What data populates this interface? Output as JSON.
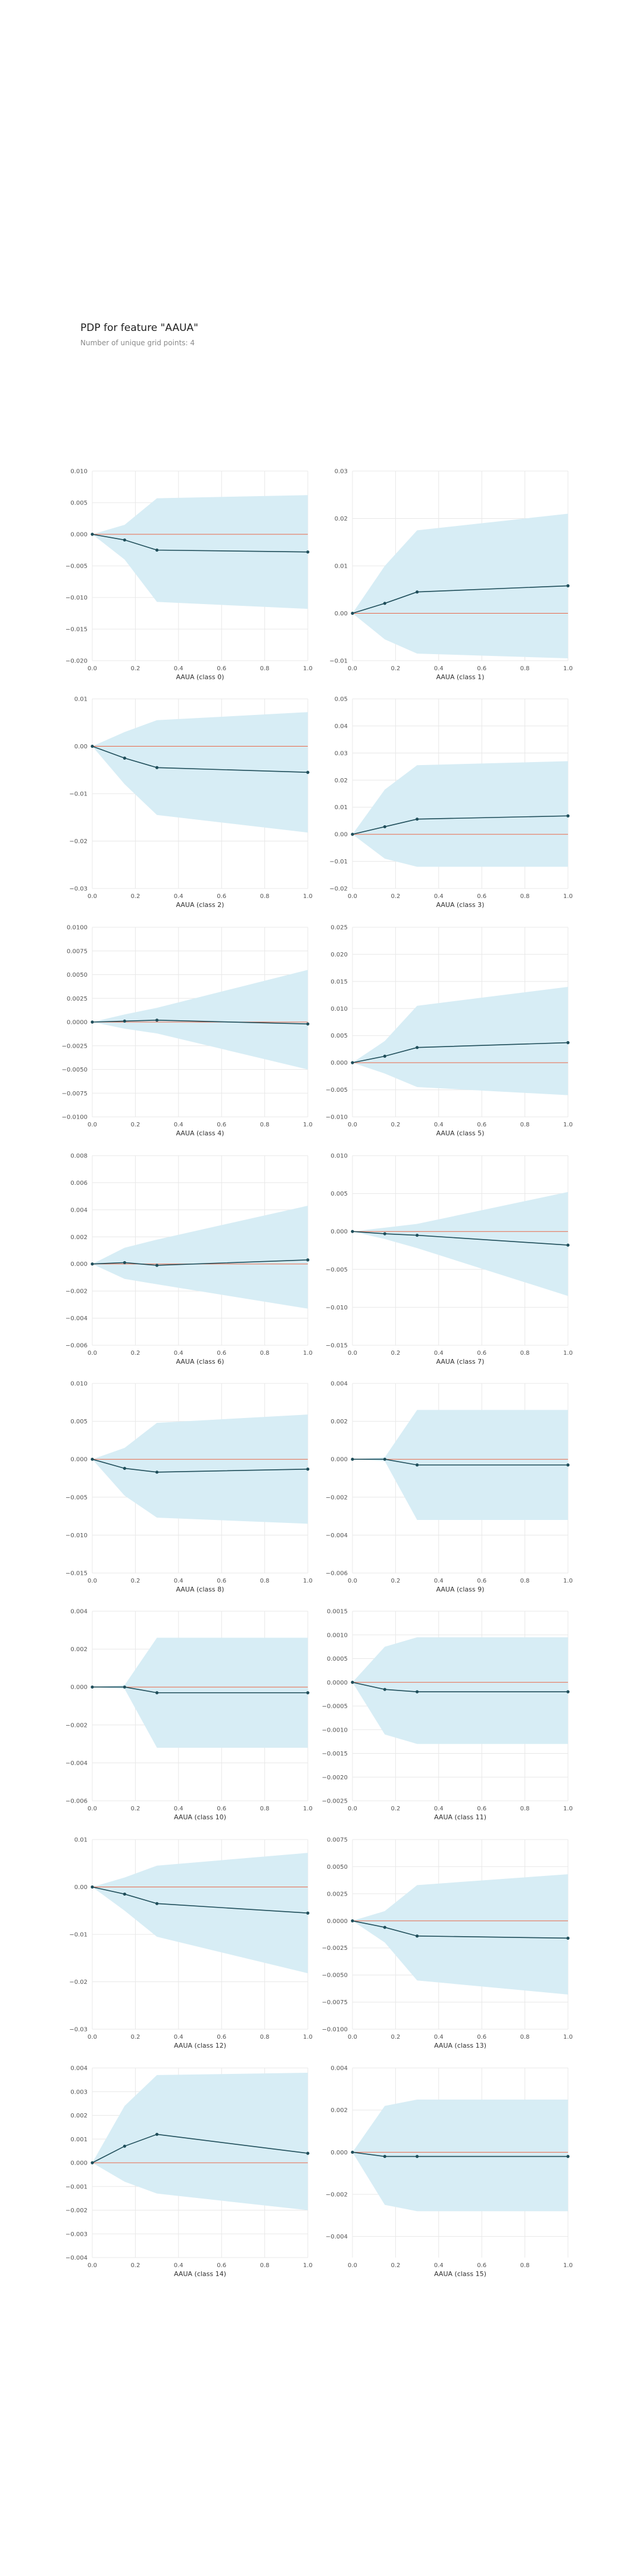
{
  "header": {
    "title": "PDP for feature \"AAUA\"",
    "subtitle": "Number of unique grid points: 4"
  },
  "colors": {
    "band": "#d7edf5",
    "line": "#1f4e5a",
    "zero_line": "#e8694a",
    "grid": "#e8e8e8",
    "tick_text": "#555555",
    "xlabel_text": "#333333"
  },
  "chart_data": [
    {
      "type": "line",
      "xlabel": "AAUA (class 0)",
      "x": [
        0,
        0.15,
        0.3,
        1.0
      ],
      "xlim": [
        0,
        1
      ],
      "ylim": [
        -0.02,
        0.01
      ],
      "yticks": [
        0.01,
        0.005,
        0.0,
        -0.005,
        -0.01,
        -0.015,
        -0.02
      ],
      "yticklabels": [
        "0.010",
        "0.005",
        "0.000",
        "−0.005",
        "−0.010",
        "−0.015",
        "−0.020"
      ],
      "xticks": [
        0,
        0.2,
        0.4,
        0.6,
        0.8,
        1.0
      ],
      "xticklabels": [
        "0.0",
        "0.2",
        "0.4",
        "0.6",
        "0.8",
        "1.0"
      ],
      "series": [
        {
          "values": [
            0.0,
            -0.0009,
            -0.0025,
            -0.0028
          ]
        }
      ],
      "band_upper": [
        0.0,
        0.0015,
        0.0057,
        0.0062
      ],
      "band_lower": [
        0.0,
        -0.004,
        -0.0107,
        -0.0118
      ]
    },
    {
      "type": "line",
      "xlabel": "AAUA (class 1)",
      "x": [
        0,
        0.15,
        0.3,
        1.0
      ],
      "xlim": [
        0,
        1
      ],
      "ylim": [
        -0.01,
        0.03
      ],
      "yticks": [
        0.03,
        0.02,
        0.01,
        0.0,
        -0.01
      ],
      "yticklabels": [
        "0.03",
        "0.02",
        "0.01",
        "0.00",
        "−0.01"
      ],
      "xticks": [
        0,
        0.2,
        0.4,
        0.6,
        0.8,
        1.0
      ],
      "xticklabels": [
        "0.0",
        "0.2",
        "0.4",
        "0.6",
        "0.8",
        "1.0"
      ],
      "series": [
        {
          "values": [
            0.0,
            0.0021,
            0.0045,
            0.0058
          ]
        }
      ],
      "band_upper": [
        0.0,
        0.01,
        0.0175,
        0.021
      ],
      "band_lower": [
        0.0,
        -0.0055,
        -0.0085,
        -0.0095
      ]
    },
    {
      "type": "line",
      "xlabel": "AAUA (class 2)",
      "x": [
        0,
        0.15,
        0.3,
        1.0
      ],
      "xlim": [
        0,
        1
      ],
      "ylim": [
        -0.03,
        0.01
      ],
      "yticks": [
        0.01,
        0.0,
        -0.01,
        -0.02,
        -0.03
      ],
      "yticklabels": [
        "0.01",
        "0.00",
        "−0.01",
        "−0.02",
        "−0.03"
      ],
      "xticks": [
        0,
        0.2,
        0.4,
        0.6,
        0.8,
        1.0
      ],
      "xticklabels": [
        "0.0",
        "0.2",
        "0.4",
        "0.6",
        "0.8",
        "1.0"
      ],
      "series": [
        {
          "values": [
            0.0,
            -0.0025,
            -0.0045,
            -0.0055
          ]
        }
      ],
      "band_upper": [
        0.0,
        0.003,
        0.0055,
        0.0072
      ],
      "band_lower": [
        0.0,
        -0.008,
        -0.0145,
        -0.0182
      ]
    },
    {
      "type": "line",
      "xlabel": "AAUA (class 3)",
      "x": [
        0,
        0.15,
        0.3,
        1.0
      ],
      "xlim": [
        0,
        1
      ],
      "ylim": [
        -0.02,
        0.05
      ],
      "yticks": [
        0.05,
        0.04,
        0.03,
        0.02,
        0.01,
        0.0,
        -0.01,
        -0.02
      ],
      "yticklabels": [
        "0.05",
        "0.04",
        "0.03",
        "0.02",
        "0.01",
        "0.00",
        "−0.01",
        "−0.02"
      ],
      "xticks": [
        0,
        0.2,
        0.4,
        0.6,
        0.8,
        1.0
      ],
      "xticklabels": [
        "0.0",
        "0.2",
        "0.4",
        "0.6",
        "0.8",
        "1.0"
      ],
      "series": [
        {
          "values": [
            0.0,
            0.0028,
            0.0056,
            0.0068
          ]
        }
      ],
      "band_upper": [
        0.0,
        0.0165,
        0.0255,
        0.027
      ],
      "band_lower": [
        0.0,
        -0.009,
        -0.012,
        -0.012
      ]
    },
    {
      "type": "line",
      "xlabel": "AAUA (class 4)",
      "x": [
        0,
        0.15,
        0.3,
        1.0
      ],
      "xlim": [
        0,
        1
      ],
      "ylim": [
        -0.01,
        0.01
      ],
      "yticks": [
        0.01,
        0.0075,
        0.005,
        0.0025,
        0.0,
        -0.0025,
        -0.005,
        -0.0075,
        -0.01
      ],
      "yticklabels": [
        "0.0100",
        "0.0075",
        "0.0050",
        "0.0025",
        "0.0000",
        "−0.0025",
        "−0.0050",
        "−0.0075",
        "−0.0100"
      ],
      "xticks": [
        0,
        0.2,
        0.4,
        0.6,
        0.8,
        1.0
      ],
      "xticklabels": [
        "0.0",
        "0.2",
        "0.4",
        "0.6",
        "0.8",
        "1.0"
      ],
      "series": [
        {
          "values": [
            0.0,
            0.0001,
            0.0002,
            -0.0002
          ]
        }
      ],
      "band_upper": [
        0.0,
        0.0008,
        0.0015,
        0.0055
      ],
      "band_lower": [
        0.0,
        -0.0007,
        -0.0012,
        -0.005
      ]
    },
    {
      "type": "line",
      "xlabel": "AAUA (class 5)",
      "x": [
        0,
        0.15,
        0.3,
        1.0
      ],
      "xlim": [
        0,
        1
      ],
      "ylim": [
        -0.01,
        0.025
      ],
      "yticks": [
        0.025,
        0.02,
        0.015,
        0.01,
        0.005,
        0.0,
        -0.005,
        -0.01
      ],
      "yticklabels": [
        "0.025",
        "0.020",
        "0.015",
        "0.010",
        "0.005",
        "0.000",
        "−0.005",
        "−0.010"
      ],
      "xticks": [
        0,
        0.2,
        0.4,
        0.6,
        0.8,
        1.0
      ],
      "xticklabels": [
        "0.0",
        "0.2",
        "0.4",
        "0.6",
        "0.8",
        "1.0"
      ],
      "series": [
        {
          "values": [
            0.0,
            0.0012,
            0.0028,
            0.0037
          ]
        }
      ],
      "band_upper": [
        0.0,
        0.004,
        0.0105,
        0.014
      ],
      "band_lower": [
        0.0,
        -0.002,
        -0.0045,
        -0.006
      ]
    },
    {
      "type": "line",
      "xlabel": "AAUA (class 6)",
      "x": [
        0,
        0.15,
        0.3,
        1.0
      ],
      "xlim": [
        0,
        1
      ],
      "ylim": [
        -0.006,
        0.008
      ],
      "yticks": [
        0.008,
        0.006,
        0.004,
        0.002,
        0.0,
        -0.002,
        -0.004,
        -0.006
      ],
      "yticklabels": [
        "0.008",
        "0.006",
        "0.004",
        "0.002",
        "0.000",
        "−0.002",
        "−0.004",
        "−0.006"
      ],
      "xticks": [
        0,
        0.2,
        0.4,
        0.6,
        0.8,
        1.0
      ],
      "xticklabels": [
        "0.0",
        "0.2",
        "0.4",
        "0.6",
        "0.8",
        "1.0"
      ],
      "series": [
        {
          "values": [
            0.0,
            0.0001,
            -0.0001,
            0.0003
          ]
        }
      ],
      "band_upper": [
        0.0,
        0.0012,
        0.0018,
        0.0043
      ],
      "band_lower": [
        0.0,
        -0.0011,
        -0.0015,
        -0.0033
      ]
    },
    {
      "type": "line",
      "xlabel": "AAUA (class 7)",
      "x": [
        0,
        0.15,
        0.3,
        1.0
      ],
      "xlim": [
        0,
        1
      ],
      "ylim": [
        -0.015,
        0.01
      ],
      "yticks": [
        0.01,
        0.005,
        0.0,
        -0.005,
        -0.01,
        -0.015
      ],
      "yticklabels": [
        "0.010",
        "0.005",
        "0.000",
        "−0.005",
        "−0.010",
        "−0.015"
      ],
      "xticks": [
        0,
        0.2,
        0.4,
        0.6,
        0.8,
        1.0
      ],
      "xticklabels": [
        "0.0",
        "0.2",
        "0.4",
        "0.6",
        "0.8",
        "1.0"
      ],
      "series": [
        {
          "values": [
            0.0,
            -0.0003,
            -0.0005,
            -0.0018
          ]
        }
      ],
      "band_upper": [
        0.0,
        0.0005,
        0.001,
        0.0052
      ],
      "band_lower": [
        0.0,
        -0.001,
        -0.0022,
        -0.0085
      ]
    },
    {
      "type": "line",
      "xlabel": "AAUA (class 8)",
      "x": [
        0,
        0.15,
        0.3,
        1.0
      ],
      "xlim": [
        0,
        1
      ],
      "ylim": [
        -0.015,
        0.01
      ],
      "yticks": [
        0.01,
        0.005,
        0.0,
        -0.005,
        -0.01,
        -0.015
      ],
      "yticklabels": [
        "0.010",
        "0.005",
        "0.000",
        "−0.005",
        "−0.010",
        "−0.015"
      ],
      "xticks": [
        0,
        0.2,
        0.4,
        0.6,
        0.8,
        1.0
      ],
      "xticklabels": [
        "0.0",
        "0.2",
        "0.4",
        "0.6",
        "0.8",
        "1.0"
      ],
      "series": [
        {
          "values": [
            0.0,
            -0.0012,
            -0.0017,
            -0.0013
          ]
        }
      ],
      "band_upper": [
        0.0,
        0.0015,
        0.0048,
        0.0059
      ],
      "band_lower": [
        0.0,
        -0.0048,
        -0.0077,
        -0.0085
      ]
    },
    {
      "type": "line",
      "xlabel": "AAUA (class 9)",
      "x": [
        0,
        0.15,
        0.3,
        1.0
      ],
      "xlim": [
        0,
        1
      ],
      "ylim": [
        -0.006,
        0.004
      ],
      "yticks": [
        0.004,
        0.002,
        0.0,
        -0.002,
        -0.004,
        -0.006
      ],
      "yticklabels": [
        "0.004",
        "0.002",
        "0.000",
        "−0.002",
        "−0.004",
        "−0.006"
      ],
      "xticks": [
        0,
        0.2,
        0.4,
        0.6,
        0.8,
        1.0
      ],
      "xticklabels": [
        "0.0",
        "0.2",
        "0.4",
        "0.6",
        "0.8",
        "1.0"
      ],
      "series": [
        {
          "values": [
            0.0,
            0.0,
            -0.0003,
            -0.0003
          ]
        }
      ],
      "band_upper": [
        0.0,
        0.0001,
        0.0026,
        0.0026
      ],
      "band_lower": [
        0.0,
        -0.0001,
        -0.0032,
        -0.0032
      ]
    },
    {
      "type": "line",
      "xlabel": "AAUA (class 10)",
      "x": [
        0,
        0.15,
        0.3,
        1.0
      ],
      "xlim": [
        0,
        1
      ],
      "ylim": [
        -0.006,
        0.004
      ],
      "yticks": [
        0.004,
        0.002,
        0.0,
        -0.002,
        -0.004,
        -0.006
      ],
      "yticklabels": [
        "0.004",
        "0.002",
        "0.000",
        "−0.002",
        "−0.004",
        "−0.006"
      ],
      "xticks": [
        0,
        0.2,
        0.4,
        0.6,
        0.8,
        1.0
      ],
      "xticklabels": [
        "0.0",
        "0.2",
        "0.4",
        "0.6",
        "0.8",
        "1.0"
      ],
      "series": [
        {
          "values": [
            0.0,
            0.0,
            -0.0003,
            -0.0003
          ]
        }
      ],
      "band_upper": [
        0.0,
        0.0001,
        0.0026,
        0.0026
      ],
      "band_lower": [
        0.0,
        -0.0001,
        -0.0032,
        -0.0032
      ]
    },
    {
      "type": "line",
      "xlabel": "AAUA (class 11)",
      "x": [
        0,
        0.15,
        0.3,
        1.0
      ],
      "xlim": [
        0,
        1
      ],
      "ylim": [
        -0.0025,
        0.0015
      ],
      "yticks": [
        0.0015,
        0.001,
        0.0005,
        0.0,
        -0.0005,
        -0.001,
        -0.0015,
        -0.002,
        -0.0025
      ],
      "yticklabels": [
        "0.0015",
        "0.0010",
        "0.0005",
        "0.0000",
        "−0.0005",
        "−0.0010",
        "−0.0015",
        "−0.0020",
        "−0.0025"
      ],
      "xticks": [
        0,
        0.2,
        0.4,
        0.6,
        0.8,
        1.0
      ],
      "xticklabels": [
        "0.0",
        "0.2",
        "0.4",
        "0.6",
        "0.8",
        "1.0"
      ],
      "series": [
        {
          "values": [
            0.0,
            -0.00015,
            -0.0002,
            -0.0002
          ]
        }
      ],
      "band_upper": [
        0.0,
        0.00075,
        0.00095,
        0.00095
      ],
      "band_lower": [
        0.0,
        -0.0011,
        -0.0013,
        -0.0013
      ]
    },
    {
      "type": "line",
      "xlabel": "AAUA (class 12)",
      "x": [
        0,
        0.15,
        0.3,
        1.0
      ],
      "xlim": [
        0,
        1
      ],
      "ylim": [
        -0.03,
        0.01
      ],
      "yticks": [
        0.01,
        0.0,
        -0.01,
        -0.02,
        -0.03
      ],
      "yticklabels": [
        "0.01",
        "0.00",
        "−0.01",
        "−0.02",
        "−0.03"
      ],
      "xticks": [
        0,
        0.2,
        0.4,
        0.6,
        0.8,
        1.0
      ],
      "xticklabels": [
        "0.0",
        "0.2",
        "0.4",
        "0.6",
        "0.8",
        "1.0"
      ],
      "series": [
        {
          "values": [
            0.0,
            -0.0015,
            -0.0035,
            -0.0055
          ]
        }
      ],
      "band_upper": [
        0.0,
        0.002,
        0.0045,
        0.0072
      ],
      "band_lower": [
        0.0,
        -0.005,
        -0.0105,
        -0.0182
      ]
    },
    {
      "type": "line",
      "xlabel": "AAUA (class 13)",
      "x": [
        0,
        0.15,
        0.3,
        1.0
      ],
      "xlim": [
        0,
        1
      ],
      "ylim": [
        -0.01,
        0.0075
      ],
      "yticks": [
        0.0075,
        0.005,
        0.0025,
        0.0,
        -0.0025,
        -0.005,
        -0.0075,
        -0.01
      ],
      "yticklabels": [
        "0.0075",
        "0.0050",
        "0.0025",
        "0.0000",
        "−0.0025",
        "−0.0050",
        "−0.0075",
        "−0.0100"
      ],
      "xticks": [
        0,
        0.2,
        0.4,
        0.6,
        0.8,
        1.0
      ],
      "xticklabels": [
        "0.0",
        "0.2",
        "0.4",
        "0.6",
        "0.8",
        "1.0"
      ],
      "series": [
        {
          "values": [
            0.0,
            -0.0006,
            -0.0014,
            -0.0016
          ]
        }
      ],
      "band_upper": [
        0.0,
        0.0009,
        0.0033,
        0.0043
      ],
      "band_lower": [
        0.0,
        -0.002,
        -0.0055,
        -0.0068
      ]
    },
    {
      "type": "line",
      "xlabel": "AAUA (class 14)",
      "x": [
        0,
        0.15,
        0.3,
        1.0
      ],
      "xlim": [
        0,
        1
      ],
      "ylim": [
        -0.004,
        0.004
      ],
      "yticks": [
        0.004,
        0.003,
        0.002,
        0.001,
        0.0,
        -0.001,
        -0.002,
        -0.003,
        -0.004
      ],
      "yticklabels": [
        "0.004",
        "0.003",
        "0.002",
        "0.001",
        "0.000",
        "−0.001",
        "−0.002",
        "−0.003",
        "−0.004"
      ],
      "xticks": [
        0,
        0.2,
        0.4,
        0.6,
        0.8,
        1.0
      ],
      "xticklabels": [
        "0.0",
        "0.2",
        "0.4",
        "0.6",
        "0.8",
        "1.0"
      ],
      "series": [
        {
          "values": [
            0.0,
            0.0007,
            0.0012,
            0.0004
          ]
        }
      ],
      "band_upper": [
        0.0,
        0.0024,
        0.0037,
        0.0038
      ],
      "band_lower": [
        0.0,
        -0.0008,
        -0.0013,
        -0.002
      ]
    },
    {
      "type": "line",
      "xlabel": "AAUA (class 15)",
      "x": [
        0,
        0.15,
        0.3,
        1.0
      ],
      "xlim": [
        0,
        1
      ],
      "ylim": [
        -0.005,
        0.004
      ],
      "yticks": [
        0.004,
        0.002,
        0.0,
        -0.002,
        -0.004
      ],
      "yticklabels": [
        "0.004",
        "0.002",
        "0.000",
        "−0.002",
        "−0.004"
      ],
      "xticks": [
        0,
        0.2,
        0.4,
        0.6,
        0.8,
        1.0
      ],
      "xticklabels": [
        "0.0",
        "0.2",
        "0.4",
        "0.6",
        "0.8",
        "1.0"
      ],
      "series": [
        {
          "values": [
            0.0,
            -0.0002,
            -0.0002,
            -0.0002
          ]
        }
      ],
      "band_upper": [
        0.0,
        0.0022,
        0.0025,
        0.0025
      ],
      "band_lower": [
        0.0,
        -0.0025,
        -0.0028,
        -0.0028
      ]
    }
  ]
}
